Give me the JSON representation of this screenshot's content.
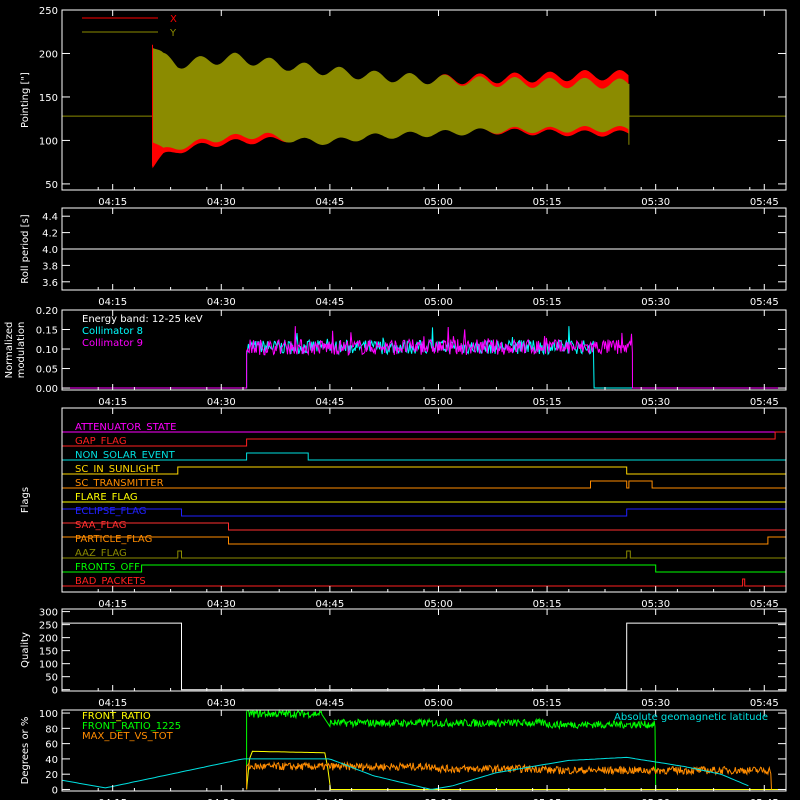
{
  "time_axis": {
    "range_min": [
      248,
      348
    ],
    "tick_labels": [
      "04:15",
      "04:30",
      "04:45",
      "05:00",
      "05:15",
      "05:30",
      "05:45"
    ],
    "tick_values_min": [
      255,
      270,
      285,
      300,
      315,
      330,
      345
    ]
  },
  "chart_data": [
    {
      "id": "pointing",
      "type": "area",
      "ylabel": "Pointing [\"]",
      "ylim": [
        43,
        250
      ],
      "yticks": [
        50,
        100,
        150,
        200,
        250
      ],
      "xlim_min": [
        248,
        348
      ],
      "baseline": {
        "value": 128,
        "color": "#8b8b00"
      },
      "active_range_min": [
        260.5,
        326.3
      ],
      "legend": {
        "position": "top-left",
        "entries": [
          {
            "name": "X",
            "color": "#ff0000"
          },
          {
            "name": "Y",
            "color": "#8b8b00"
          }
        ]
      },
      "series": [
        {
          "name": "X",
          "color": "#ff0000",
          "envelope_time_min": [
            260.5,
            262,
            264,
            268,
            272,
            276,
            280,
            285,
            290,
            295,
            300,
            305,
            310,
            315,
            320,
            326.3
          ],
          "upper": [
            205,
            182,
            178,
            176,
            180,
            182,
            180,
            175,
            172,
            170,
            170,
            171,
            172,
            173,
            175,
            175
          ],
          "lower": [
            70,
            82,
            88,
            95,
            98,
            100,
            102,
            105,
            108,
            110,
            110,
            111,
            110,
            109,
            108,
            108
          ]
        },
        {
          "name": "Y",
          "color": "#8b8b00",
          "envelope_time_min": [
            260.5,
            262,
            264,
            268,
            272,
            276,
            280,
            285,
            290,
            295,
            300,
            305,
            310,
            315,
            320,
            326.3
          ],
          "upper": [
            210,
            195,
            188,
            192,
            195,
            190,
            185,
            180,
            175,
            172,
            170,
            168,
            167,
            166,
            166,
            165
          ],
          "lower": [
            100,
            88,
            92,
            100,
            104,
            106,
            100,
            98,
            104,
            106,
            108,
            110,
            112,
            112,
            113,
            113
          ]
        }
      ]
    },
    {
      "id": "roll",
      "type": "line",
      "ylabel": "Roll period [s]",
      "ylim": [
        3.5,
        4.5
      ],
      "yticks": [
        3.6,
        3.8,
        4.0,
        4.2,
        4.4
      ],
      "xlim_min": [
        248,
        348
      ],
      "series": [
        {
          "name": "",
          "color": "#ffffff",
          "x_min": [
            248,
            348
          ],
          "y": [
            4.0,
            4.0
          ]
        }
      ]
    },
    {
      "id": "modulation",
      "type": "line",
      "ylabel": "Normalized modulation",
      "ylim": [
        -0.005,
        0.2
      ],
      "yticks": [
        0.0,
        0.05,
        0.1,
        0.15,
        0.2
      ],
      "xlim_min": [
        248,
        348
      ],
      "annotation": "Energy band: 12-25 keV",
      "active_range_min": [
        273.5,
        326.8
      ],
      "series": [
        {
          "name": "Collimator 8",
          "color": "#00ffff",
          "mean": 0.105,
          "spread": 0.018,
          "active_min": [
            273.5,
            321.5
          ],
          "gap_min": [
            321.5,
            324.5
          ]
        },
        {
          "name": "Collimator 9",
          "color": "#ff00ff",
          "mean": 0.105,
          "spread": 0.02,
          "active_min": [
            273.5,
            326.8
          ]
        }
      ]
    },
    {
      "id": "flags",
      "type": "line",
      "ylabel": "Flags",
      "xlim_min": [
        248,
        348
      ],
      "series": [
        {
          "name": "ATTENUATOR_STATE",
          "color": "#ff00ff",
          "steps": [
            [
              248,
              0
            ]
          ]
        },
        {
          "name": "GAP_FLAG",
          "color": "#ff2020",
          "steps": [
            [
              248,
              0
            ],
            [
              273.5,
              1
            ],
            [
              346.5,
              2
            ]
          ]
        },
        {
          "name": "NON_SOLAR_EVENT",
          "color": "#00e0e0",
          "steps": [
            [
              248,
              0
            ],
            [
              273.5,
              1
            ],
            [
              282,
              0
            ]
          ]
        },
        {
          "name": "SC_IN_SUNLIGHT",
          "color": "#ffd700",
          "steps": [
            [
              248,
              0
            ],
            [
              264,
              1
            ],
            [
              326,
              0
            ]
          ]
        },
        {
          "name": "SC_TRANSMITTER",
          "color": "#ff8c00",
          "steps": [
            [
              248,
              0
            ],
            [
              321,
              1
            ],
            [
              326,
              0
            ],
            [
              326.3,
              1
            ],
            [
              329.5,
              0
            ]
          ]
        },
        {
          "name": "FLARE_FLAG",
          "color": "#ffff00",
          "steps": [
            [
              248,
              0
            ]
          ]
        },
        {
          "name": "ECLIPSE_FLAG",
          "color": "#2020ff",
          "steps": [
            [
              248,
              1
            ],
            [
              264.5,
              0
            ],
            [
              326,
              1
            ]
          ]
        },
        {
          "name": "SAA_FLAG",
          "color": "#ff3030",
          "steps": [
            [
              248,
              1
            ],
            [
              271,
              0
            ],
            [
              348,
              1
            ]
          ]
        },
        {
          "name": "PARTICLE_FLAG",
          "color": "#ff8c00",
          "steps": [
            [
              248,
              1
            ],
            [
              271,
              0
            ],
            [
              345.5,
              1
            ]
          ]
        },
        {
          "name": "AAZ_FLAG",
          "color": "#8b8b00",
          "steps": [
            [
              248,
              0
            ],
            [
              264,
              1
            ],
            [
              264.5,
              0
            ],
            [
              326,
              1
            ],
            [
              326.5,
              0
            ]
          ]
        },
        {
          "name": "FRONTS_OFF",
          "color": "#00ff00",
          "steps": [
            [
              248,
              0
            ],
            [
              259,
              1
            ],
            [
              330,
              0
            ]
          ]
        },
        {
          "name": "BAD_PACKETS",
          "color": "#ff2020",
          "steps": [
            [
              248,
              0
            ],
            [
              342,
              1
            ],
            [
              342.3,
              0
            ]
          ]
        }
      ]
    },
    {
      "id": "quality",
      "type": "line",
      "ylabel": "Quality",
      "ylim": [
        -5,
        310
      ],
      "yticks": [
        0,
        50,
        100,
        150,
        200,
        250,
        300
      ],
      "xlim_min": [
        248,
        348
      ],
      "series": [
        {
          "name": "",
          "color": "#ffffff",
          "x_min": [
            248,
            264.5,
            264.5,
            326,
            326,
            348
          ],
          "y": [
            256,
            256,
            0,
            0,
            256,
            256
          ]
        }
      ]
    },
    {
      "id": "ratios",
      "type": "line",
      "ylabel": "Degrees or %",
      "ylim": [
        -2,
        104
      ],
      "yticks": [
        0,
        20,
        40,
        60,
        80,
        100
      ],
      "xlim_min": [
        248,
        348
      ],
      "annotation": "Absolute geomagnetic latitude",
      "series": [
        {
          "name": "FRONT_RATIO",
          "color": "#ffff00",
          "x_min": [
            273.5,
            274,
            284.5,
            285,
            348
          ],
          "y": [
            0,
            50,
            48,
            0,
            0
          ]
        },
        {
          "name": "FRONT_RATIO_1225",
          "color": "#00ff00",
          "segments": [
            [
              273.5,
              284,
              99
            ],
            [
              285,
              300,
              87
            ],
            [
              300,
              315,
              87
            ],
            [
              315,
              330,
              85
            ]
          ]
        },
        {
          "name": "MAX_DET_VS_TOT",
          "color": "#ff8c00",
          "segments": [
            [
              273.5,
              300,
              30
            ],
            [
              300,
              315,
              27
            ],
            [
              315,
              346,
              25
            ]
          ]
        },
        {
          "name": "Absolute geomagnetic latitude",
          "color": "#00e0e0",
          "x_min": [
            248,
            254,
            263,
            273,
            285,
            291,
            299,
            302,
            308,
            318,
            326,
            334,
            339,
            343
          ],
          "y": [
            12,
            2,
            20,
            40,
            40,
            18,
            0,
            5,
            22,
            38,
            42,
            30,
            20,
            4
          ]
        }
      ]
    }
  ]
}
